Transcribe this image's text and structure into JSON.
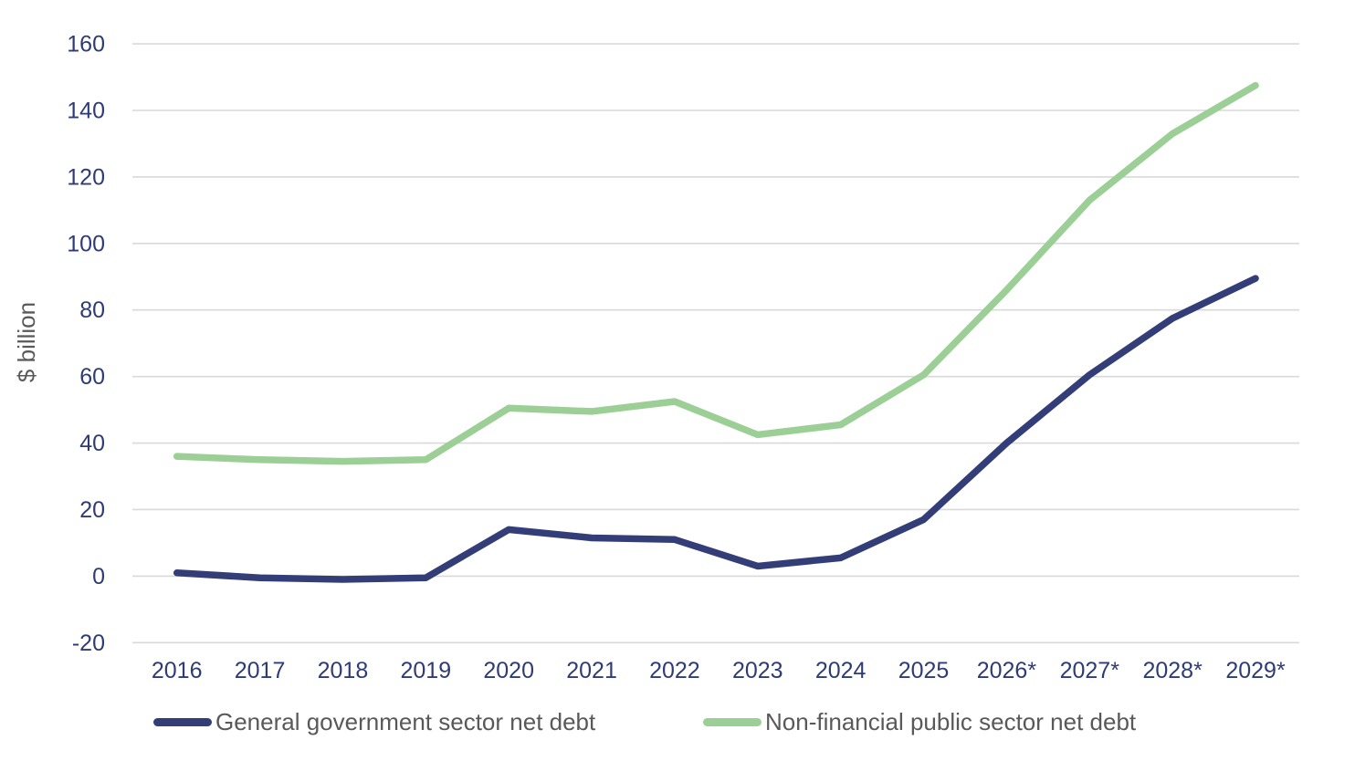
{
  "chart_data": {
    "type": "line",
    "title": "",
    "xlabel": "",
    "ylabel": "$ billion",
    "ylim": [
      -20,
      160
    ],
    "yticks": [
      160,
      140,
      120,
      100,
      80,
      60,
      40,
      20,
      0,
      -20
    ],
    "grid": "horizontal",
    "legend_position": "bottom-left",
    "categories": [
      "2016",
      "2017",
      "2018",
      "2019",
      "2020",
      "2021",
      "2022",
      "2023",
      "2024",
      "2025",
      "2026*",
      "2027*",
      "2028*",
      "2029*"
    ],
    "series": [
      {
        "name": "General government sector net debt",
        "color": "#333e78",
        "values": [
          1,
          -0.5,
          -1,
          -0.5,
          14,
          11.5,
          11,
          3,
          5.5,
          17,
          40,
          60.5,
          77.5,
          89.5
        ]
      },
      {
        "name": "Non-financial public sector net debt",
        "color": "#9ccf95",
        "values": [
          36,
          35,
          34.5,
          35,
          50.5,
          49.5,
          52.5,
          42.5,
          45.5,
          60.5,
          86,
          113,
          133,
          147.5
        ]
      }
    ]
  },
  "colors": {
    "tick_label": "#2f3b76",
    "axis_text_gray": "#595959",
    "gridline": "#d9d9d9",
    "background": "#ffffff"
  }
}
